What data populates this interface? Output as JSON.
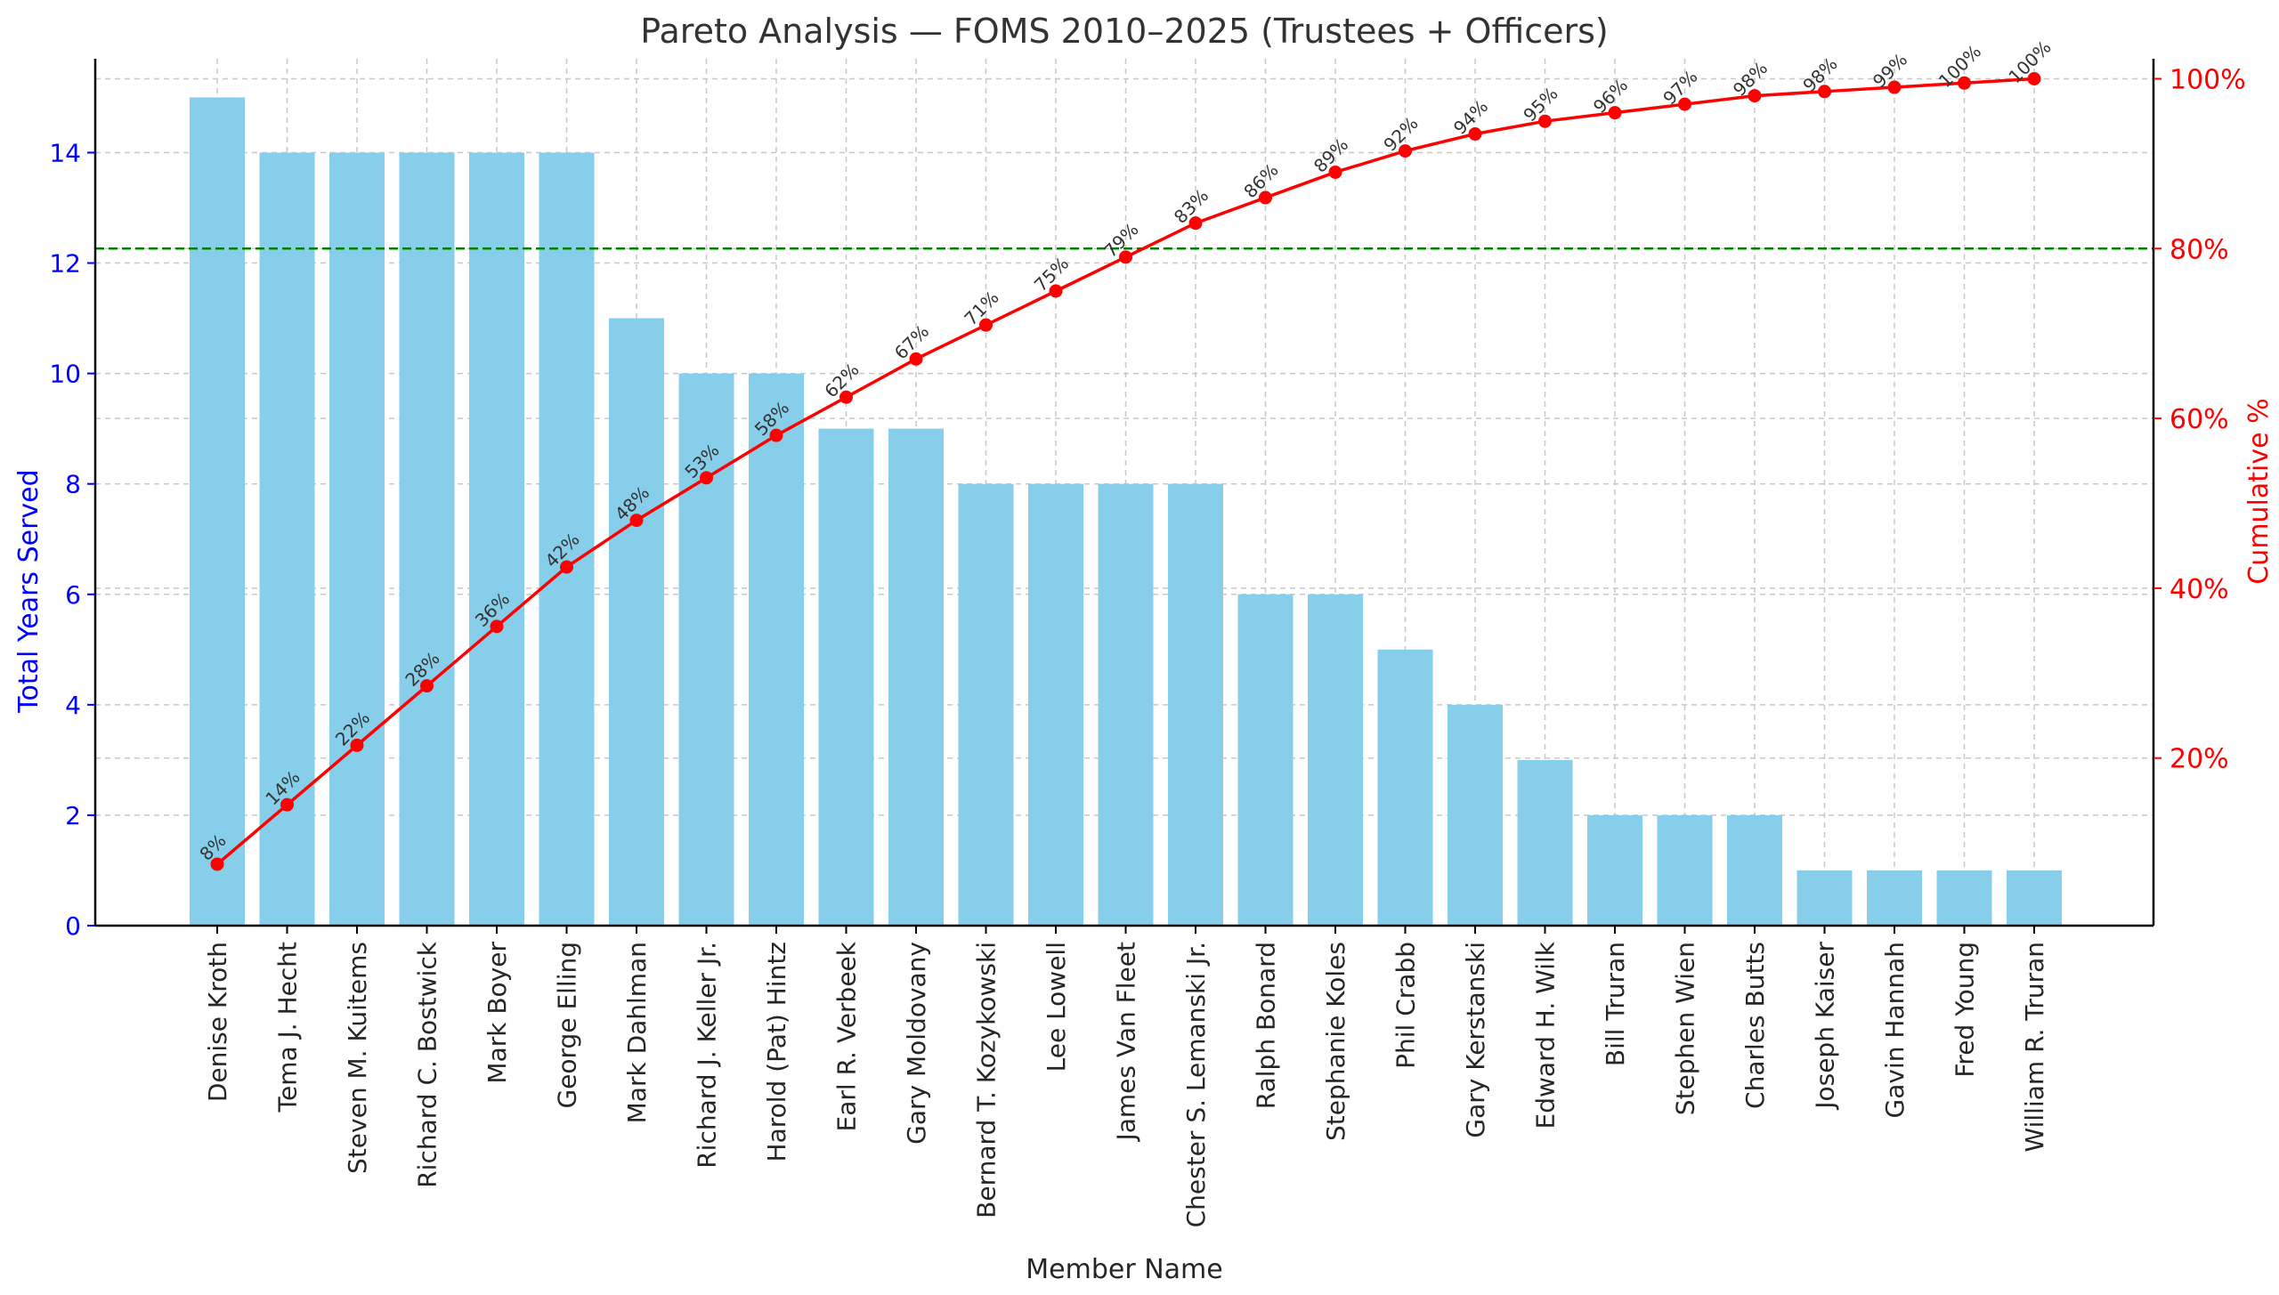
{
  "chart_data": {
    "type": "bar",
    "title": "Pareto Analysis — FOMS 2010–2025 (Trustees + Officers)",
    "xlabel": "Member Name",
    "ylabel": "Total Years Served",
    "y2label": "Cumulative %",
    "categories": [
      "Denise Kroth",
      "Tema J. Hecht",
      "Steven M. Kuitems",
      "Richard C. Bostwick",
      "Mark Boyer",
      "George Elling",
      "Mark Dahlman",
      "Richard J. Keller Jr.",
      "Harold (Pat) Hintz",
      "Earl R. Verbeek",
      "Gary Moldovany",
      "Bernard T. Kozykowski",
      "Lee Lowell",
      "James Van Fleet",
      "Chester S. Lemanski Jr.",
      "Ralph Bonard",
      "Stephanie Koles",
      "Phil Crabb",
      "Gary Kerstanski",
      "Edward H. Wilk",
      "Bill Truran",
      "Stephen Wien",
      "Charles Butts",
      "Joseph Kaiser",
      "Gavin Hannah",
      "Fred Young",
      "William R. Truran"
    ],
    "series": [
      {
        "values": [
          15,
          14,
          14,
          14,
          14,
          14,
          11,
          10,
          10,
          9,
          9,
          8,
          8,
          8,
          8,
          6,
          6,
          5,
          4,
          3,
          2,
          2,
          2,
          1,
          1,
          1,
          1
        ],
        "color": "#87ceeb",
        "axis": "left"
      },
      {
        "values": [
          7.5,
          14.5,
          21.5,
          28.5,
          35.5,
          42.5,
          48,
          53,
          58,
          62.5,
          67,
          71,
          75,
          79,
          83,
          86,
          89,
          91.5,
          93.5,
          95,
          96,
          97,
          98,
          98.5,
          99,
          99.5,
          100
        ],
        "color": "#ff0000",
        "axis": "right"
      }
    ],
    "point_labels": [
      "8%",
      "14%",
      "22%",
      "28%",
      "36%",
      "42%",
      "48%",
      "53%",
      "58%",
      "62%",
      "67%",
      "71%",
      "75%",
      "79%",
      "83%",
      "86%",
      "89%",
      "92%",
      "94%",
      "95%",
      "96%",
      "97%",
      "98%",
      "98%",
      "99%",
      "100%",
      "100%"
    ],
    "threshold": {
      "value": 80,
      "color": "#008000"
    },
    "ylim": [
      0,
      15.7
    ],
    "y_ticks": [
      0,
      2,
      4,
      6,
      8,
      10,
      12,
      14
    ],
    "y2_ticks": [
      20,
      40,
      60,
      80,
      100
    ],
    "y2_tick_labels": [
      "20%",
      "40%",
      "60%",
      "80%",
      "100%"
    ],
    "grid": true,
    "colors": {
      "left_axis": "#0000ff",
      "right_axis": "#ff0000"
    }
  }
}
